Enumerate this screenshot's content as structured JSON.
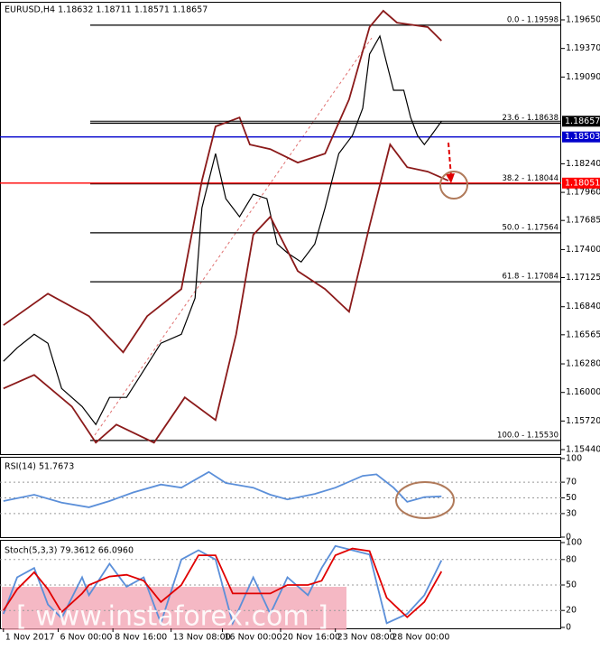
{
  "chart_data": [
    {
      "type": "line",
      "title": "EURUSD,H4  1.18632 1.18711 1.18571 1.18657",
      "xlim": [
        -1,
        163
      ],
      "ylim": [
        1.15396,
        1.19827
      ],
      "yticks": [
        {
          "value": 1.1965,
          "label": "1.19650"
        },
        {
          "value": 1.1937,
          "label": "1.19370"
        },
        {
          "value": 1.1909,
          "label": "1.19090"
        },
        {
          "value": 1.1824,
          "label": "1.18240"
        },
        {
          "value": 1.1796,
          "label": "1.17960"
        },
        1.17685,
        {
          "value": 1.174,
          "label": "1.17400"
        },
        1.17125,
        {
          "value": 1.1684,
          "label": "1.16840"
        },
        1.16565,
        {
          "value": 1.1628,
          "label": "1.16280"
        },
        {
          "value": 1.16,
          "label": "1.16000"
        },
        {
          "value": 1.1572,
          "label": "1.15720"
        },
        {
          "value": 1.1544,
          "label": "1.15440"
        }
      ],
      "fib_levels": [
        {
          "value": 1.19598,
          "label": "0.0 - 1.19598"
        },
        {
          "value": 1.18638,
          "label": "23.6 - 1.18638"
        },
        {
          "value": 1.18044,
          "label": "38.2 - 1.18044"
        },
        {
          "value": 1.17564,
          "label": "50.0 - 1.17564"
        },
        {
          "value": 1.17084,
          "label": "61.8 - 1.17084"
        },
        {
          "value": 1.1553,
          "label": "100.0 - 1.15530"
        }
      ],
      "hlines": [
        {
          "value": 1.18503,
          "color": "#0000cc"
        },
        {
          "value": 1.18051,
          "color": "#ff0000"
        }
      ],
      "last_price": 1.18657,
      "series": [
        {
          "name": "Close",
          "color": "#000000",
          "x": [
            0,
            4,
            9,
            13,
            17,
            23,
            27,
            31,
            36,
            41,
            46,
            52,
            56,
            58,
            62,
            65,
            69,
            73,
            77,
            80,
            83,
            87,
            91,
            94,
            98,
            102,
            105,
            107,
            110,
            112,
            114,
            117,
            119,
            121,
            123,
            125,
            128
          ],
          "values": [
            1.16305,
            1.16437,
            1.1657,
            1.16482,
            1.16039,
            1.15862,
            1.15685,
            1.15951,
            1.15951,
            1.16216,
            1.16482,
            1.1657,
            1.16924,
            1.17809,
            1.1834,
            1.17898,
            1.17721,
            1.17942,
            1.17898,
            1.17455,
            1.17367,
            1.17278,
            1.17455,
            1.17809,
            1.1834,
            1.18517,
            1.18783,
            1.19314,
            1.19491,
            1.19225,
            1.1896,
            1.1896,
            1.18694,
            1.18517,
            1.18429,
            1.18517,
            1.18657
          ]
        },
        {
          "name": "Upper Band",
          "color": "#8b1a1a",
          "x": [
            0,
            13,
            25,
            35,
            42,
            52,
            58,
            62,
            69,
            72,
            78,
            86,
            94,
            101,
            107,
            111,
            115,
            124,
            128
          ],
          "values": [
            1.16659,
            1.16968,
            1.16747,
            1.16393,
            1.16747,
            1.17013,
            1.18075,
            1.18606,
            1.18694,
            1.18429,
            1.18384,
            1.18252,
            1.1834,
            1.18871,
            1.19579,
            1.19739,
            1.19623,
            1.19579,
            1.19446
          ]
        },
        {
          "name": "Lower Band",
          "color": "#8b1a1a",
          "x": [
            0,
            9,
            20,
            27,
            33,
            44,
            53,
            62,
            68,
            73,
            78,
            86,
            94,
            101,
            107,
            113,
            118,
            124,
            130
          ],
          "values": [
            1.16039,
            1.16172,
            1.15862,
            1.15508,
            1.15685,
            1.15508,
            1.15951,
            1.15729,
            1.1657,
            1.17544,
            1.17721,
            1.1719,
            1.17013,
            1.16791,
            1.17632,
            1.18429,
            1.18207,
            1.18163,
            1.18075
          ]
        }
      ]
    },
    {
      "type": "line",
      "title": "RSI(14) 51.7673",
      "xlim": [
        -1,
        163
      ],
      "ylim": [
        0,
        100
      ],
      "yticks": [
        100,
        70,
        50,
        30,
        0
      ],
      "grid": true,
      "series": [
        {
          "name": "RSI",
          "color": "#5b8fd9",
          "x": [
            0,
            9,
            17,
            25,
            31,
            38,
            46,
            52,
            60,
            65,
            73,
            78,
            83,
            91,
            97,
            105,
            109,
            114,
            118,
            123,
            128
          ],
          "values": [
            46,
            54,
            44,
            38,
            46,
            57,
            67,
            63,
            83,
            69,
            63,
            54,
            48,
            55,
            63,
            78,
            80,
            63,
            45,
            51,
            52
          ]
        }
      ]
    },
    {
      "type": "line",
      "title": "Stoch(5,3,3) 79.3612 66.0960",
      "xlim": [
        -1,
        163
      ],
      "ylim": [
        0,
        100
      ],
      "yticks": [
        100,
        80,
        50,
        20,
        0
      ],
      "grid": true,
      "xticks": [
        {
          "value": 0,
          "label": "1 Nov 2017"
        },
        {
          "value": 16,
          "label": "6 Nov 00:00"
        },
        {
          "value": 32,
          "label": "8 Nov 16:00"
        },
        {
          "value": 49,
          "label": "13 Nov 08:00"
        },
        {
          "value": 64,
          "label": "16 Nov 00:00"
        },
        {
          "value": 81,
          "label": "20 Nov 16:00"
        },
        {
          "value": 97,
          "label": "23 Nov 08:00"
        },
        {
          "value": 113,
          "label": "28 Nov 00:00"
        }
      ],
      "watermark": "[  www.instaforex.com  ]",
      "series": [
        {
          "name": "%K",
          "color": "#5b8fd9",
          "x": [
            0,
            4,
            9,
            13,
            17,
            23,
            25,
            31,
            36,
            41,
            46,
            52,
            57,
            62,
            67,
            73,
            78,
            83,
            89,
            93,
            97,
            102,
            107,
            112,
            118,
            123,
            128
          ],
          "values": [
            16,
            59,
            70,
            27,
            11,
            59,
            38,
            75,
            48,
            59,
            5,
            80,
            91,
            80,
            5,
            59,
            16,
            59,
            38,
            70,
            96,
            91,
            86,
            5,
            16,
            38,
            79
          ]
        },
        {
          "name": "%D",
          "color": "#e00000",
          "x": [
            0,
            4,
            9,
            13,
            17,
            23,
            25,
            31,
            36,
            41,
            46,
            52,
            57,
            62,
            67,
            73,
            78,
            83,
            89,
            93,
            97,
            102,
            107,
            112,
            118,
            123,
            128
          ],
          "values": [
            20,
            45,
            65,
            45,
            18,
            40,
            50,
            60,
            62,
            55,
            30,
            50,
            85,
            85,
            40,
            40,
            40,
            50,
            50,
            55,
            85,
            93,
            90,
            35,
            12,
            30,
            66
          ]
        }
      ]
    }
  ]
}
